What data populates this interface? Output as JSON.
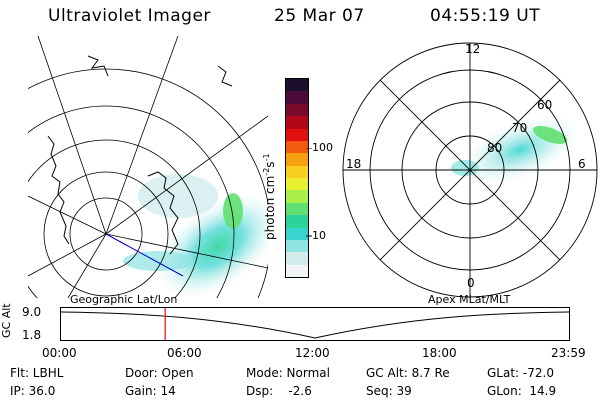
{
  "header": {
    "title": "Ultraviolet Imager",
    "date": "25 Mar 07",
    "time": "04:55:19 UT"
  },
  "colorbar": {
    "label": "photon cm",
    "label_exp1": "-2",
    "label_s": "s",
    "label_exp2": "-1",
    "ticks": [
      "100",
      "10"
    ],
    "colors": [
      "#1b0f2b",
      "#4a0a3a",
      "#7a0a2a",
      "#b00818",
      "#e01010",
      "#f25a10",
      "#f7a010",
      "#f8d020",
      "#e8ee30",
      "#aaf04a",
      "#5fe070",
      "#2ed39a",
      "#39d4d0",
      "#8fe3e3",
      "#d2ecec",
      "#f1f5f5"
    ]
  },
  "left_plot": {
    "label": "Geographic Lat/Lon"
  },
  "right_plot": {
    "label": "Apex MLat/MLT",
    "mlt_labels": {
      "top": "12",
      "left": "18",
      "right": "6",
      "bottom": "0"
    },
    "lat_labels": [
      "60",
      "70",
      "80"
    ]
  },
  "timeline": {
    "ylabel": "GC Alt",
    "yticks": [
      "9.0",
      "1.8"
    ],
    "xticks": [
      "00:00",
      "06:00",
      "12:00",
      "18:00",
      "23:59"
    ],
    "current_time_fraction": 0.205,
    "marker_color": "#ff0000"
  },
  "footer": {
    "flt": "Flt: LBHL",
    "ip": "IP: 36.0",
    "door": "Door: Open",
    "gain": "Gain: 14",
    "mode": "Mode: Normal",
    "dsp": "Dsp:    -2.6",
    "gcalt": "GC Alt: 8.7 Re",
    "seq": "Seq: 39",
    "glat": "GLat: -72.0",
    "glon": "GLon:  14.9"
  }
}
